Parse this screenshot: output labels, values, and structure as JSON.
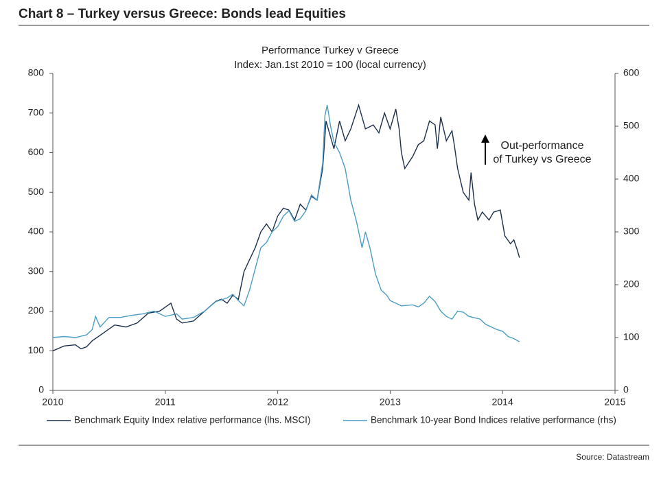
{
  "header": {
    "title": "Chart 8 – Turkey versus Greece: Bonds lead Equities"
  },
  "chart_data": {
    "type": "line",
    "title": "Performance Turkey v Greece",
    "subtitle": "Index: Jan.1st 2010 = 100 (local currency)",
    "annotations": [
      "Out-performance",
      "of Turkey vs Greece"
    ],
    "xlim": [
      2010,
      2015
    ],
    "xticks": [
      2010,
      2011,
      2012,
      2013,
      2014,
      2015
    ],
    "ylim": [
      0,
      800
    ],
    "yticks": [
      0,
      100,
      200,
      300,
      400,
      500,
      600,
      700,
      800
    ],
    "y2lim": [
      0,
      600
    ],
    "y2ticks": [
      0,
      100,
      200,
      300,
      400,
      500,
      600
    ],
    "grid": false,
    "series": [
      {
        "name": "Benchmark Equity Index relative performance (lhs. MSCI)",
        "color": "#1b2f4b",
        "axis": "y",
        "x": [
          2010.0,
          2010.1,
          2010.2,
          2010.25,
          2010.3,
          2010.35,
          2010.45,
          2010.55,
          2010.65,
          2010.75,
          2010.85,
          2010.95,
          2011.0,
          2011.05,
          2011.1,
          2011.15,
          2011.25,
          2011.35,
          2011.45,
          2011.5,
          2011.55,
          2011.6,
          2011.65,
          2011.7,
          2011.75,
          2011.8,
          2011.85,
          2011.9,
          2011.95,
          2012.0,
          2012.05,
          2012.1,
          2012.15,
          2012.2,
          2012.25,
          2012.3,
          2012.35,
          2012.4,
          2012.43,
          2012.46,
          2012.5,
          2012.55,
          2012.6,
          2012.65,
          2012.72,
          2012.78,
          2012.85,
          2012.9,
          2012.95,
          2013.0,
          2013.05,
          2013.08,
          2013.1,
          2013.13,
          2013.2,
          2013.25,
          2013.3,
          2013.35,
          2013.4,
          2013.42,
          2013.45,
          2013.5,
          2013.55,
          2013.57,
          2013.6,
          2013.65,
          2013.7,
          2013.72,
          2013.75,
          2013.78,
          2013.82,
          2013.88,
          2013.92,
          2013.98,
          2014.02,
          2014.07,
          2014.1,
          2014.13,
          2014.15
        ],
        "values": [
          100,
          112,
          115,
          105,
          110,
          125,
          145,
          165,
          160,
          170,
          195,
          200,
          210,
          220,
          180,
          170,
          175,
          200,
          225,
          230,
          220,
          240,
          230,
          300,
          330,
          360,
          400,
          420,
          400,
          440,
          460,
          455,
          430,
          470,
          455,
          490,
          480,
          560,
          680,
          650,
          610,
          680,
          630,
          660,
          720,
          660,
          670,
          650,
          700,
          660,
          710,
          660,
          600,
          560,
          590,
          620,
          630,
          680,
          670,
          610,
          690,
          630,
          655,
          620,
          560,
          500,
          480,
          550,
          470,
          430,
          450,
          430,
          450,
          455,
          390,
          370,
          380,
          355,
          335
        ]
      },
      {
        "name": "Benchmark 10-year Bond Indices relative performance (rhs)",
        "color": "#4a9cc3",
        "axis": "y2",
        "x": [
          2010.0,
          2010.1,
          2010.2,
          2010.3,
          2010.35,
          2010.38,
          2010.42,
          2010.5,
          2010.6,
          2010.7,
          2010.8,
          2010.9,
          2011.0,
          2011.1,
          2011.15,
          2011.25,
          2011.35,
          2011.45,
          2011.55,
          2011.6,
          2011.65,
          2011.7,
          2011.75,
          2011.8,
          2011.85,
          2011.9,
          2011.95,
          2012.0,
          2012.05,
          2012.1,
          2012.15,
          2012.2,
          2012.25,
          2012.3,
          2012.35,
          2012.4,
          2012.42,
          2012.44,
          2012.47,
          2012.5,
          2012.55,
          2012.6,
          2012.65,
          2012.7,
          2012.75,
          2012.78,
          2012.82,
          2012.87,
          2012.92,
          2012.97,
          2013.0,
          2013.05,
          2013.1,
          2013.2,
          2013.25,
          2013.3,
          2013.35,
          2013.4,
          2013.45,
          2013.5,
          2013.55,
          2013.6,
          2013.65,
          2013.7,
          2013.8,
          2013.85,
          2013.9,
          2013.95,
          2014.0,
          2014.05,
          2014.1,
          2014.15
        ],
        "values": [
          100,
          102,
          100,
          105,
          115,
          140,
          120,
          138,
          138,
          142,
          145,
          150,
          140,
          145,
          135,
          138,
          150,
          168,
          175,
          182,
          170,
          160,
          190,
          230,
          270,
          280,
          300,
          310,
          330,
          340,
          320,
          325,
          340,
          370,
          360,
          430,
          520,
          540,
          500,
          470,
          450,
          420,
          360,
          320,
          270,
          300,
          270,
          220,
          190,
          180,
          170,
          165,
          160,
          162,
          158,
          165,
          178,
          168,
          150,
          140,
          135,
          150,
          148,
          140,
          135,
          125,
          120,
          115,
          112,
          102,
          98,
          92
        ]
      }
    ]
  },
  "footer": {
    "source": "Source: Datastream"
  }
}
